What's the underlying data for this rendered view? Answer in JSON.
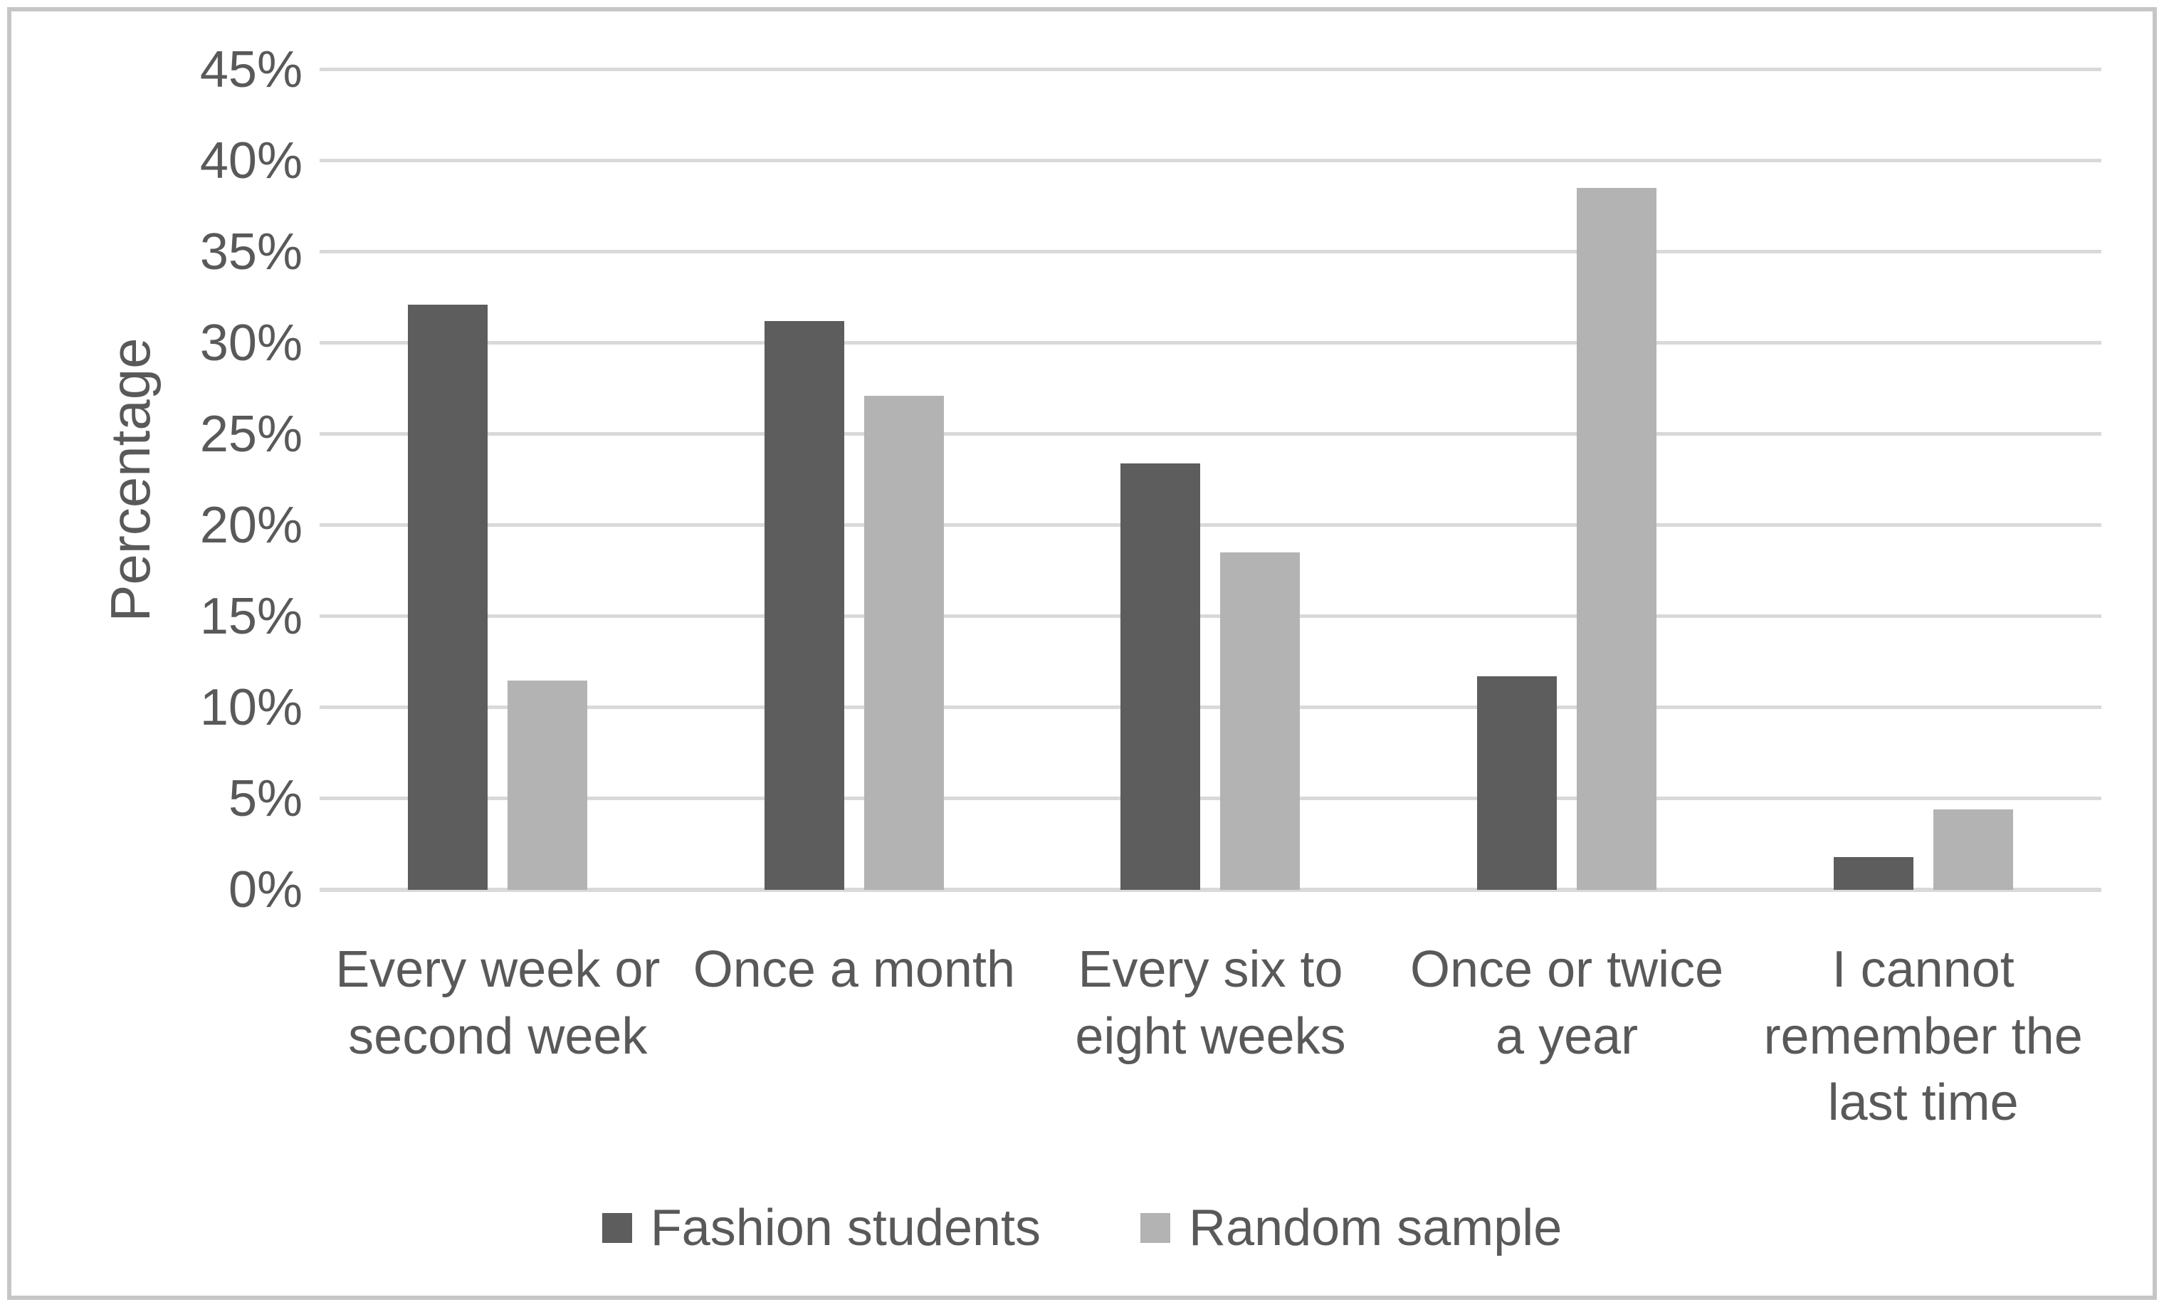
{
  "chart_data": {
    "type": "bar",
    "title": "",
    "xlabel": "",
    "ylabel": "Percentage",
    "categories": [
      "Every week or second week",
      "Once a month",
      "Every six to eight weeks",
      "Once or twice a year",
      "I cannot remember the last time"
    ],
    "series": [
      {
        "name": "Fashion students",
        "color": "#5d5d5d",
        "values": [
          32.1,
          31.2,
          23.4,
          11.7,
          1.8
        ]
      },
      {
        "name": "Random sample",
        "color": "#b3b3b3",
        "values": [
          11.5,
          27.1,
          18.5,
          38.5,
          4.4
        ]
      }
    ],
    "y_axis": {
      "min": 0,
      "max": 45,
      "step": 5,
      "tick_suffix": "%",
      "tick_labels": [
        "0%",
        "5%",
        "10%",
        "15%",
        "20%",
        "25%",
        "30%",
        "35%",
        "40%",
        "45%"
      ]
    },
    "grid": true,
    "gridline_color": "#d9d9d9",
    "legend_position": "bottom",
    "text_color": "#595959",
    "frame_border_color": "#c6c6c6"
  }
}
